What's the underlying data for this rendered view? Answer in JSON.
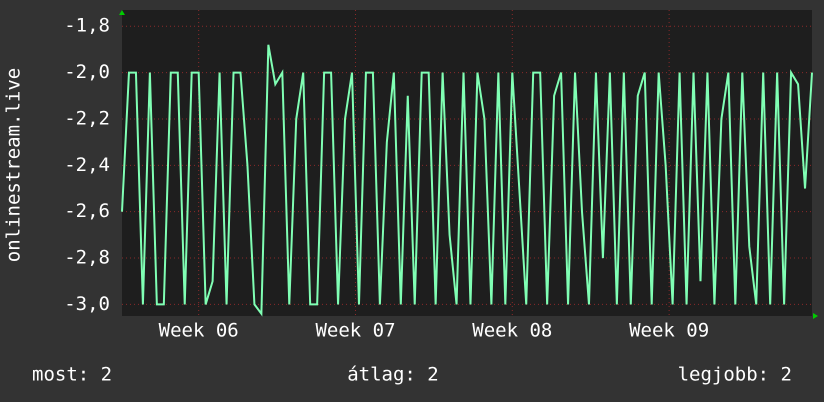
{
  "chart_data": {
    "type": "line",
    "y_label": "onlinestream.live",
    "x": [
      0,
      1,
      2,
      3,
      4,
      5,
      6,
      7,
      8,
      9,
      10,
      11,
      12,
      13,
      14,
      15,
      16,
      17,
      18,
      19,
      20,
      21,
      22,
      23,
      24,
      25,
      26,
      27,
      28,
      29,
      30,
      31,
      32,
      33,
      34,
      35,
      36,
      37,
      38,
      39,
      40,
      41,
      42,
      43,
      44,
      45,
      46,
      47,
      48,
      49,
      50,
      51,
      52,
      53,
      54,
      55,
      56,
      57,
      58,
      59,
      60,
      61,
      62,
      63,
      64,
      65,
      66,
      67,
      68,
      69,
      70,
      71,
      72,
      73,
      74,
      75,
      76,
      77,
      78,
      79,
      80,
      81,
      82,
      83,
      84,
      85,
      86,
      87,
      88,
      89,
      90,
      91,
      92,
      93,
      94,
      95,
      96,
      97,
      98,
      99
    ],
    "series": [
      {
        "color": "#80ffb4",
        "values": [
          -2.6,
          -2,
          -2,
          -3,
          -2,
          -3,
          -3,
          -2,
          -2,
          -3,
          -2,
          -2,
          -3,
          -2.9,
          -2,
          -3,
          -2,
          -2,
          -2.4,
          -3,
          -3.04,
          -1.88,
          -2.05,
          -2,
          -3,
          -2.2,
          -2,
          -3,
          -3,
          -2,
          -2,
          -3,
          -2.2,
          -2,
          -3,
          -2,
          -2,
          -3,
          -2.3,
          -2,
          -3,
          -2.1,
          -3,
          -2,
          -2,
          -3,
          -2,
          -2.7,
          -3,
          -2,
          -3,
          -2,
          -2.2,
          -3,
          -2,
          -3,
          -2,
          -2.5,
          -3,
          -2,
          -2,
          -3,
          -2.1,
          -2,
          -3,
          -2,
          -2.6,
          -3,
          -2,
          -2.8,
          -2,
          -3,
          -2,
          -3,
          -2.1,
          -2,
          -3,
          -2,
          -2.4,
          -3,
          -2,
          -3,
          -2,
          -2.9,
          -2,
          -3,
          -2.2,
          -2,
          -3,
          -2,
          -2.75,
          -3,
          -2,
          -3,
          -2,
          -3,
          -2,
          -2.05,
          -2.5,
          -2
        ]
      }
    ],
    "xlim": [
      0,
      99
    ],
    "xticks": [
      {
        "value": 11,
        "label": "Week 06"
      },
      {
        "value": 33.5,
        "label": "Week 07"
      },
      {
        "value": 56,
        "label": "Week 08"
      },
      {
        "value": 78.5,
        "label": "Week 09"
      }
    ],
    "ylim": [
      -3.05,
      -1.73
    ],
    "yticks": [
      {
        "value": -1.8,
        "label": "-1,8"
      },
      {
        "value": -2.0,
        "label": "-2,0"
      },
      {
        "value": -2.2,
        "label": "-2,2"
      },
      {
        "value": -2.4,
        "label": "-2,4"
      },
      {
        "value": -2.6,
        "label": "-2,6"
      },
      {
        "value": -2.8,
        "label": "-2,8"
      },
      {
        "value": -3.0,
        "label": "-3,0"
      }
    ],
    "grid": true,
    "legend": [
      "most: 2",
      "átlag: 2",
      "legjobb: 2"
    ]
  }
}
